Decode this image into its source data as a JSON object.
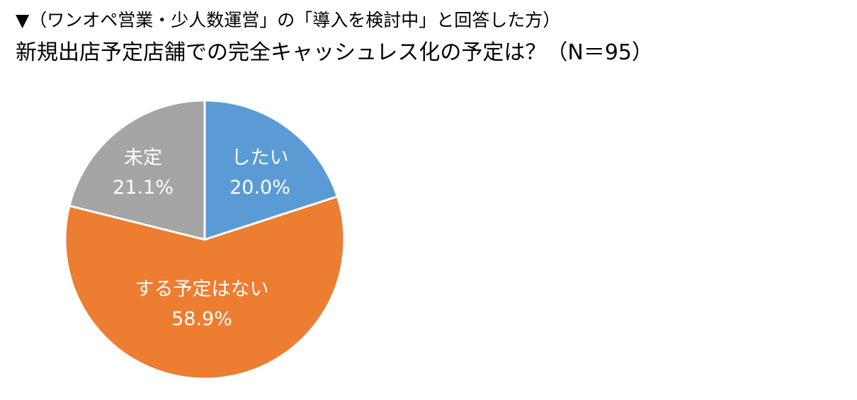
{
  "chart_data": {
    "type": "pie",
    "subtitle": "▼（ワンオペ営業・少人数運営」の「導入を検討中」と回答した方）",
    "title": "新規出店予定店舗での完全キャッシュレス化の予定は？（N＝95）",
    "slices": [
      {
        "label": "したい",
        "value": 20.0,
        "value_label": "20.0%",
        "color": "#5b9bd5"
      },
      {
        "label": "する予定はない",
        "value": 58.9,
        "value_label": "58.9%",
        "color": "#ed7d31"
      },
      {
        "label": "未定",
        "value": 21.1,
        "value_label": "21.1%",
        "color": "#a5a5a5"
      }
    ],
    "start_angle_deg": 0,
    "direction": "clockwise",
    "legend": "none"
  }
}
